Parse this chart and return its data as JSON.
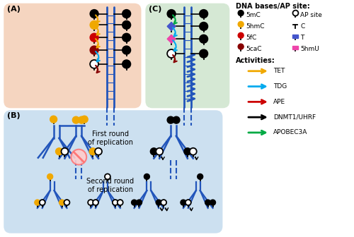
{
  "bg_salmon": "#f5d5c0",
  "bg_green": "#d5e8d4",
  "bg_blue": "#cce0f0",
  "dna_color": "#2255bb",
  "black": "#000000",
  "orange": "#f0a800",
  "red": "#cc0000",
  "dark_red": "#880000",
  "cyan": "#00aaee",
  "green": "#00aa44",
  "pink": "#ee44aa",
  "blue_sq": "#4455cc",
  "activity_colors": [
    "#f0a800",
    "#00aaee",
    "#cc0000",
    "#000000",
    "#00aa44"
  ],
  "activities": [
    "TET",
    "TDG",
    "APE",
    "DNMT1/UHRF",
    "APOBEC3A"
  ]
}
